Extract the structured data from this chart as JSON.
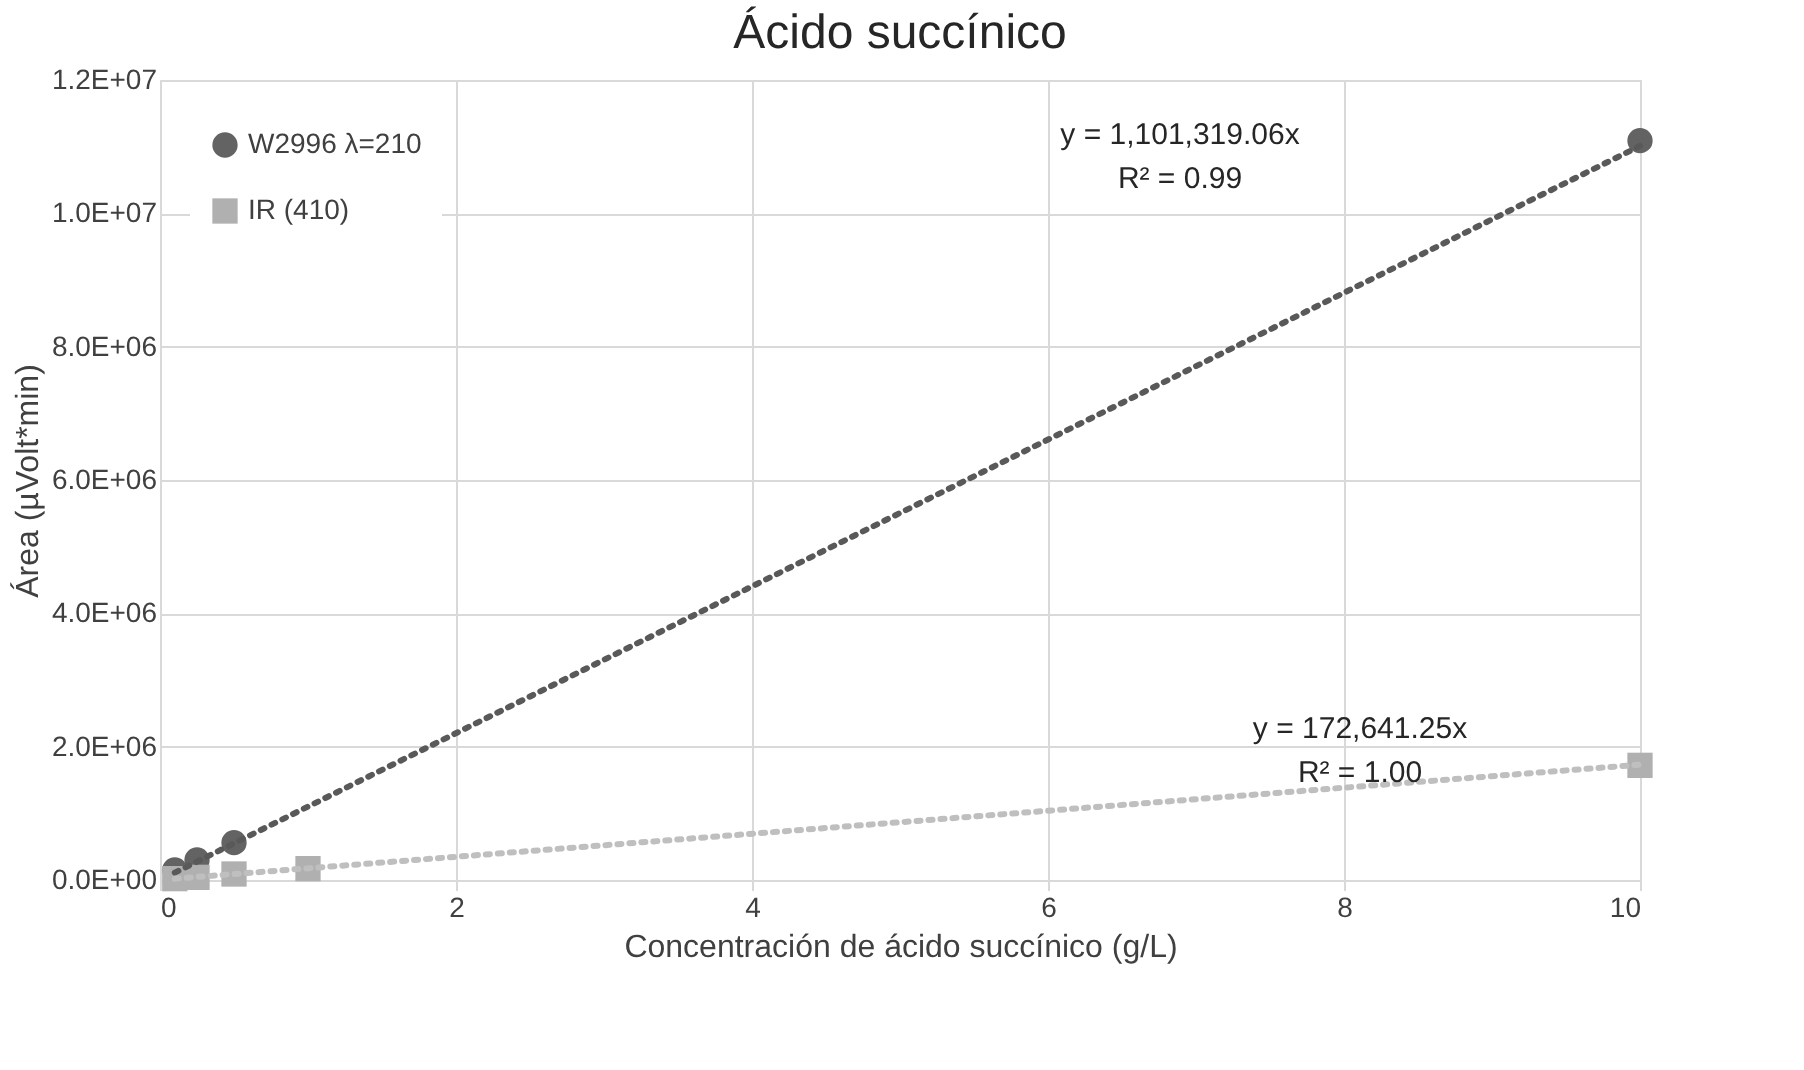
{
  "chart_data": {
    "type": "scatter",
    "title": "Ácido succínico",
    "xlabel": "Concentración de ácido succínico (g/L)",
    "ylabel": "Área (µVolt*min)",
    "xlim": [
      0,
      10
    ],
    "xticks": [
      0,
      2,
      4,
      6,
      8,
      10
    ],
    "ylim": [
      0,
      12000000
    ],
    "yticks": [
      {
        "value": 0,
        "label": "0.0E+00"
      },
      {
        "value": 2000000,
        "label": "2.0E+06"
      },
      {
        "value": 4000000,
        "label": "4.0E+06"
      },
      {
        "value": 6000000,
        "label": "6.0E+06"
      },
      {
        "value": 8000000,
        "label": "8.0E+06"
      },
      {
        "value": 10000000,
        "label": "1.0E+07"
      },
      {
        "value": 12000000,
        "label": "1.2E+07"
      }
    ],
    "grid": true,
    "legend": "top left",
    "series": [
      {
        "name": "W2996 λ=210",
        "color": "#636363",
        "marker": "circle",
        "x": [
          0.1,
          0.25,
          0.5,
          1,
          10
        ],
        "values": [
          150000,
          300000,
          560000,
          null,
          11090000
        ]
      },
      {
        "name": "IR (410)",
        "color": "#b0b0b0",
        "marker": "square",
        "x": [
          0.1,
          0.25,
          0.5,
          1,
          10
        ],
        "values": [
          20000,
          40000,
          90000,
          170000,
          1720000
        ]
      },
      {
        "type": "line",
        "color": "#595959",
        "line_style": "dotted",
        "marker": "none",
        "x": [
          0.1,
          10
        ],
        "values": [
          110000,
          11010000
        ]
      },
      {
        "type": "line",
        "color": "#bfbfbf",
        "line_style": "dotted",
        "marker": "none",
        "x": [
          0.1,
          10
        ],
        "values": [
          20000,
          1730000
        ]
      }
    ],
    "annotations": [
      "y = 1,101,319.06x\nR² = 0.99",
      "y = 172,641.25x\nR² = 1.00"
    ]
  }
}
